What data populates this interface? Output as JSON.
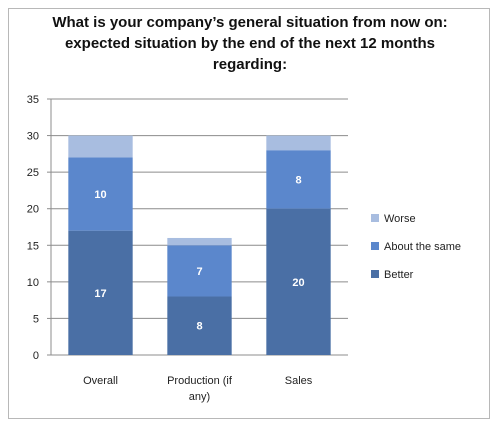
{
  "chart_data": {
    "type": "bar",
    "stacked": true,
    "title": "What is your company’s general situation from now on: expected situation by the end of the next 12 months regarding:",
    "categories": [
      "Overall",
      "Production (if any)",
      "Sales"
    ],
    "category_label_lines": [
      [
        "Overall"
      ],
      [
        "Production (if",
        "any)"
      ],
      [
        "Sales"
      ]
    ],
    "series": [
      {
        "name": "Better",
        "values": [
          17,
          8,
          20
        ],
        "color": "#4a6fa5",
        "labels": [
          "17",
          "8",
          "20"
        ]
      },
      {
        "name": "About the same",
        "values": [
          10,
          7,
          8
        ],
        "color": "#5b87cc",
        "labels": [
          "10",
          "7",
          "8"
        ]
      },
      {
        "name": "Worse",
        "values": [
          3,
          1,
          2
        ],
        "color": "#a8bde0",
        "labels": [
          "",
          "",
          ""
        ]
      }
    ],
    "legend_order": [
      "Worse",
      "About the same",
      "Better"
    ],
    "ylim": [
      0,
      35
    ],
    "yticks": [
      0,
      5,
      10,
      15,
      20,
      25,
      30,
      35
    ],
    "grid": true,
    "legend_position": "right"
  }
}
